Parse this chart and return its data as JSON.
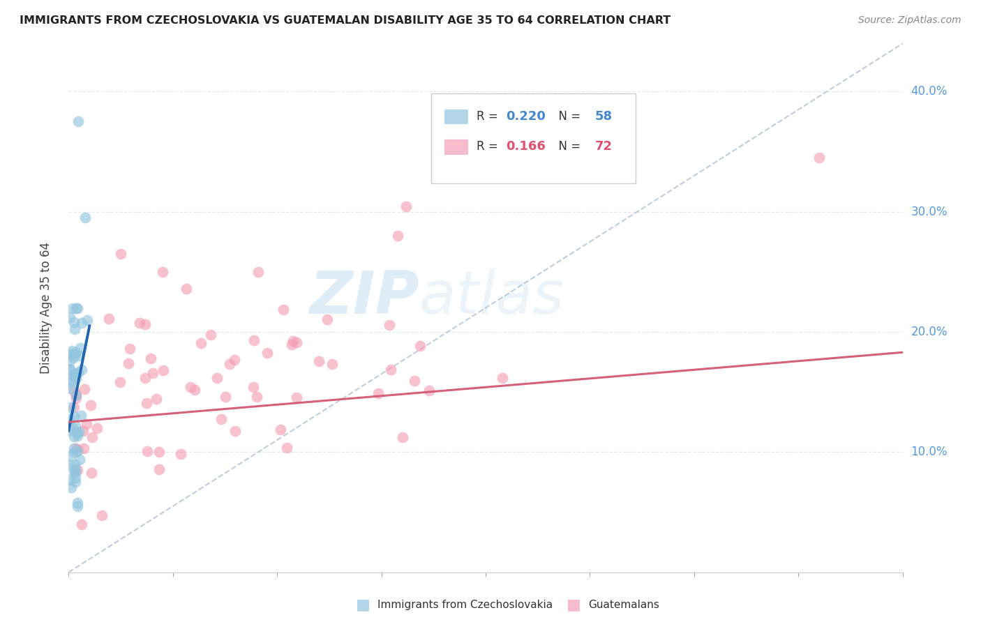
{
  "title": "IMMIGRANTS FROM CZECHOSLOVAKIA VS GUATEMALAN DISABILITY AGE 35 TO 64 CORRELATION CHART",
  "source": "Source: ZipAtlas.com",
  "ylabel": "Disability Age 35 to 64",
  "ytick_labels": [
    "10.0%",
    "20.0%",
    "30.0%",
    "40.0%"
  ],
  "ytick_values": [
    0.1,
    0.2,
    0.3,
    0.4
  ],
  "xmin": 0.0,
  "xmax": 0.8,
  "ymin": 0.0,
  "ymax": 0.44,
  "blue_color": "#92c5de",
  "pink_color": "#f4a0b5",
  "blue_line_color": "#2166ac",
  "pink_line_color": "#d6607a",
  "diag_line_color": "#b8c8d8",
  "watermark_zip": "ZIP",
  "watermark_atlas": "atlas",
  "legend_blue_r": "0.220",
  "legend_blue_n": "58",
  "legend_pink_r": "0.166",
  "legend_pink_n": "72",
  "legend_r_color": "#333333",
  "legend_val_color": "#4488cc",
  "legend_pink_val_color": "#e05070",
  "grid_color": "#dde8f0",
  "title_color": "#222222",
  "source_color": "#888888",
  "ylabel_color": "#444444",
  "axis_label_color": "#5599dd"
}
